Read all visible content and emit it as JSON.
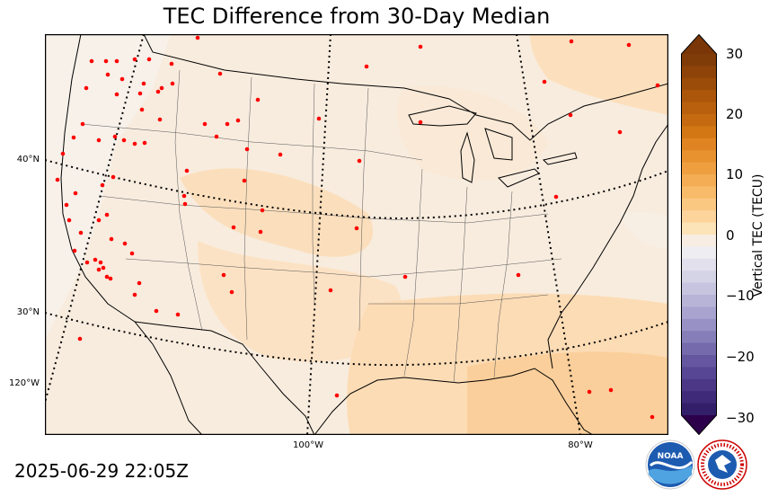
{
  "title": "TEC Difference from 30-Day Median",
  "timestamp": "2025-06-29 22:05Z",
  "map": {
    "lat_labels": [
      "40°N",
      "30°N"
    ],
    "lon_labels_left": [
      "120°W"
    ],
    "lon_labels_bottom": [
      "100°W",
      "80°W"
    ],
    "fill_colors": [
      "#f7efe4",
      "#fbe6cb",
      "#fcd9b0",
      "#fbc88f"
    ],
    "station_color": "#ff0000",
    "station_count": 92
  },
  "colorbar": {
    "title": "Vertical TEC (TECU)",
    "ticks": [
      "30",
      "20",
      "10",
      "0",
      "−10",
      "−20",
      "−30"
    ],
    "range": [
      -30,
      30
    ]
  },
  "logos": {
    "noaa": "NOAA",
    "nws": "NATIONAL WEATHER SERVICE"
  }
}
